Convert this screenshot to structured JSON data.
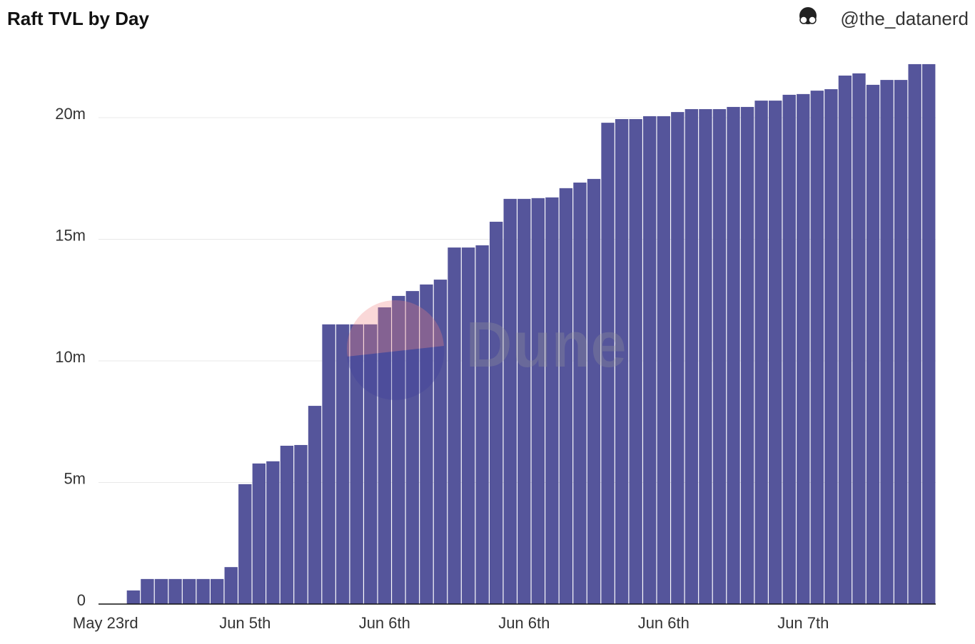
{
  "header": {
    "author": "@the_datanerd"
  },
  "watermark": "Dune",
  "chart_data": {
    "type": "bar",
    "title": "Raft TVL by Day",
    "categories": [
      "May 23rd",
      null,
      null,
      null,
      null,
      null,
      null,
      null,
      null,
      null,
      "Jun 5th",
      null,
      null,
      null,
      null,
      null,
      null,
      null,
      null,
      null,
      "Jun 6th",
      null,
      null,
      null,
      null,
      null,
      null,
      null,
      null,
      null,
      "Jun 6th",
      null,
      null,
      null,
      null,
      null,
      null,
      null,
      null,
      null,
      "Jun 6th",
      null,
      null,
      null,
      null,
      null,
      null,
      null,
      null,
      null,
      "Jun 7th",
      null,
      null,
      null,
      null,
      null,
      null,
      null,
      null,
      null
    ],
    "values": [
      0,
      0,
      560000,
      1030000,
      1030000,
      1030000,
      1030000,
      1030000,
      1030000,
      1520000,
      4930000,
      5780000,
      5870000,
      6510000,
      6540000,
      8150000,
      11500000,
      11500000,
      11500000,
      11500000,
      12200000,
      12670000,
      12870000,
      13140000,
      13340000,
      14660000,
      14660000,
      14750000,
      15720000,
      16660000,
      16660000,
      16690000,
      16720000,
      17100000,
      17330000,
      17480000,
      19790000,
      19940000,
      19940000,
      20060000,
      20060000,
      20230000,
      20350000,
      20350000,
      20350000,
      20440000,
      20440000,
      20700000,
      20700000,
      20940000,
      20970000,
      21110000,
      21170000,
      21730000,
      21820000,
      21350000,
      21550000,
      21550000,
      22200000,
      22200000
    ],
    "color": "#55559b",
    "ylim": [
      0,
      22500000
    ],
    "yticks": [
      0,
      {
        "value": 5000000,
        "label": "5m"
      },
      {
        "value": 10000000,
        "label": "10m"
      },
      {
        "value": 15000000,
        "label": "15m"
      },
      {
        "value": 20000000,
        "label": "20m"
      }
    ],
    "grid": true
  }
}
